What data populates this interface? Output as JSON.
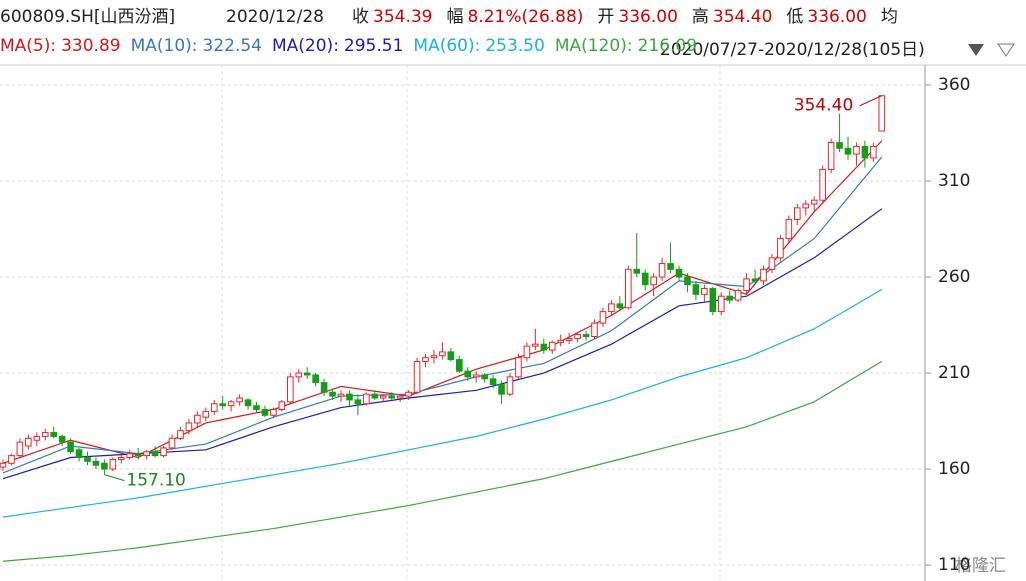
{
  "chart_data": {
    "type": "candlestick",
    "title": "600809.SH[山西汾酒]",
    "date": "2020/12/28",
    "quote": [
      {
        "name": "收",
        "text": "354.39",
        "color": "#d00000"
      },
      {
        "name": "幅",
        "text": "8.21%(26.88)",
        "color": "#d00000"
      },
      {
        "name": "开",
        "text": "336.00",
        "color": "#d00000"
      },
      {
        "name": "高",
        "text": "354.40",
        "color": "#d00000"
      },
      {
        "name": "低",
        "text": "336.00",
        "color": "#d00000"
      },
      {
        "name": "均",
        "text": null,
        "color": "#d00000"
      }
    ],
    "range": "2020/07/27-2020/12/28(105日)",
    "watermark": "格隆汇",
    "up_color": "#e8262a",
    "down_color": "#169c16",
    "ylim": [
      101.7,
      370.4
    ],
    "yticks": [
      360,
      310,
      260,
      210,
      160,
      110
    ],
    "grid": true,
    "candles": [
      [
        161,
        165,
        159,
        163
      ],
      [
        163,
        168,
        162,
        167
      ],
      [
        167,
        176,
        166,
        174
      ],
      [
        172,
        178,
        170,
        176
      ],
      [
        175,
        179,
        172,
        177
      ],
      [
        177,
        181,
        175,
        179
      ],
      [
        179,
        182,
        176,
        177
      ],
      [
        177,
        178,
        172,
        174
      ],
      [
        174,
        176,
        168,
        169
      ],
      [
        170,
        171,
        164,
        166
      ],
      [
        166,
        169,
        162,
        164
      ],
      [
        164,
        166,
        160,
        162
      ],
      [
        163,
        165,
        157.1,
        160
      ],
      [
        160,
        166,
        159,
        165
      ],
      [
        165,
        168,
        163,
        166
      ],
      [
        166,
        170,
        165,
        168
      ],
      [
        168,
        171,
        165,
        167
      ],
      [
        167,
        170,
        165,
        169
      ],
      [
        169,
        172,
        166,
        167
      ],
      [
        167,
        172,
        166,
        171
      ],
      [
        171,
        178,
        170,
        176
      ],
      [
        176,
        182,
        175,
        180
      ],
      [
        180,
        186,
        178,
        184
      ],
      [
        184,
        190,
        182,
        188
      ],
      [
        187,
        192,
        185,
        190
      ],
      [
        190,
        196,
        188,
        194
      ],
      [
        194,
        198,
        191,
        193
      ],
      [
        193,
        196,
        190,
        195
      ],
      [
        195,
        199,
        193,
        197
      ],
      [
        196,
        197,
        191,
        193
      ],
      [
        193,
        195,
        189,
        191
      ],
      [
        191,
        193,
        187,
        188
      ],
      [
        188,
        192,
        187,
        191
      ],
      [
        191,
        196,
        190,
        195
      ],
      [
        195,
        210,
        194,
        208
      ],
      [
        208,
        212,
        205,
        210
      ],
      [
        210,
        213,
        207,
        209
      ],
      [
        209,
        210,
        203,
        205
      ],
      [
        205,
        207,
        198,
        200
      ],
      [
        200,
        202,
        196,
        198
      ],
      [
        198,
        201,
        195,
        199
      ],
      [
        199,
        201,
        193,
        196
      ],
      [
        196,
        199,
        188,
        194
      ],
      [
        194,
        200,
        193,
        199
      ],
      [
        199,
        201,
        196,
        197
      ],
      [
        197,
        199,
        195,
        198
      ],
      [
        198,
        200,
        196,
        197
      ],
      [
        197,
        199,
        195,
        198
      ],
      [
        198,
        201,
        196,
        200
      ],
      [
        200,
        218,
        199,
        216
      ],
      [
        216,
        220,
        213,
        218
      ],
      [
        218,
        222,
        215,
        219
      ],
      [
        219,
        226,
        217,
        221
      ],
      [
        221,
        223,
        216,
        217
      ],
      [
        217,
        219,
        210,
        211
      ],
      [
        211,
        213,
        206,
        208
      ],
      [
        208,
        211,
        205,
        209
      ],
      [
        209,
        210,
        205,
        207
      ],
      [
        207,
        209,
        202,
        204
      ],
      [
        204,
        206,
        194,
        199
      ],
      [
        199,
        210,
        198,
        208
      ],
      [
        208,
        220,
        207,
        218
      ],
      [
        218,
        226,
        216,
        224
      ],
      [
        224,
        233,
        222,
        225
      ],
      [
        225,
        228,
        220,
        222
      ],
      [
        222,
        227,
        220,
        226
      ],
      [
        226,
        230,
        224,
        227
      ],
      [
        227,
        231,
        225,
        228
      ],
      [
        228,
        231,
        226,
        230
      ],
      [
        230,
        232,
        227,
        229
      ],
      [
        229,
        238,
        228,
        236
      ],
      [
        236,
        244,
        234,
        242
      ],
      [
        242,
        248,
        240,
        246
      ],
      [
        246,
        250,
        243,
        244
      ],
      [
        244,
        266,
        243,
        264
      ],
      [
        264,
        283,
        260,
        262
      ],
      [
        262,
        264,
        253,
        256
      ],
      [
        256,
        262,
        250,
        260
      ],
      [
        260,
        270,
        258,
        267
      ],
      [
        267,
        278,
        262,
        264
      ],
      [
        264,
        266,
        258,
        260
      ],
      [
        260,
        262,
        252,
        256
      ],
      [
        256,
        258,
        248,
        251
      ],
      [
        251,
        256,
        247,
        254
      ],
      [
        254,
        255,
        240,
        242
      ],
      [
        242,
        252,
        240,
        250
      ],
      [
        250,
        253,
        246,
        248
      ],
      [
        248,
        254,
        247,
        253
      ],
      [
        253,
        262,
        251,
        259
      ],
      [
        259,
        264,
        256,
        258
      ],
      [
        258,
        266,
        256,
        264
      ],
      [
        264,
        272,
        262,
        270
      ],
      [
        270,
        282,
        268,
        280
      ],
      [
        280,
        292,
        278,
        290
      ],
      [
        290,
        298,
        287,
        296
      ],
      [
        296,
        300,
        292,
        298
      ],
      [
        298,
        302,
        294,
        300
      ],
      [
        300,
        318,
        298,
        316
      ],
      [
        316,
        332,
        314,
        330
      ],
      [
        330,
        345,
        325,
        327
      ],
      [
        327,
        333,
        321,
        324
      ],
      [
        324,
        330,
        318,
        328
      ],
      [
        328,
        331,
        317,
        322
      ],
      [
        322,
        330,
        320,
        328
      ],
      [
        336,
        354.4,
        336,
        354.39
      ]
    ],
    "series": [
      {
        "name": "MA(5):",
        "color": "#d01818",
        "value_label": "330.89",
        "x": [
          0,
          8,
          16,
          24,
          32,
          40,
          48,
          56,
          64,
          72,
          80,
          88,
          96,
          104
        ],
        "values": [
          163,
          175,
          166,
          184,
          191,
          203,
          198,
          212,
          222,
          240,
          262,
          251,
          294,
          330.89
        ]
      },
      {
        "name": "MA(10):",
        "color": "#3a78b8",
        "value_label": "322.54",
        "x": [
          0,
          8,
          16,
          24,
          32,
          40,
          48,
          56,
          64,
          72,
          80,
          88,
          96,
          104
        ],
        "values": [
          158,
          172,
          168,
          173,
          187,
          198,
          199,
          208,
          215,
          232,
          258,
          255,
          280,
          322.54
        ]
      },
      {
        "name": "MA(20):",
        "color": "#1c1cb0",
        "value_label": "295.51",
        "x": [
          0,
          8,
          16,
          24,
          32,
          40,
          48,
          56,
          64,
          72,
          80,
          88,
          96,
          104
        ],
        "values": [
          155,
          166,
          168,
          170,
          182,
          192,
          197,
          201,
          210,
          225,
          245,
          250,
          270,
          295.51
        ]
      },
      {
        "name": "MA(60):",
        "color": "#1ab0e0",
        "value_label": "253.50",
        "x": [
          0,
          8,
          16,
          24,
          32,
          40,
          48,
          56,
          64,
          72,
          80,
          88,
          96,
          104
        ],
        "values": [
          135,
          140,
          145,
          151,
          157,
          163,
          170,
          177,
          186,
          196,
          208,
          218,
          233,
          253.5
        ]
      },
      {
        "name": "MA(120):",
        "color": "#3aa83a",
        "value_label": "216.09",
        "x": [
          0,
          8,
          16,
          24,
          32,
          40,
          48,
          56,
          64,
          72,
          80,
          88,
          96,
          104
        ],
        "values": [
          112,
          115,
          119,
          124,
          129,
          135,
          141,
          148,
          155,
          164,
          173,
          182,
          195,
          216.09
        ]
      }
    ],
    "annotations": [
      {
        "index": 104,
        "value": 354.4,
        "label": "354.40",
        "color": "#c00000"
      },
      {
        "index": 12,
        "value": 157.1,
        "label": "157.10",
        "color": "#178a17"
      }
    ]
  }
}
